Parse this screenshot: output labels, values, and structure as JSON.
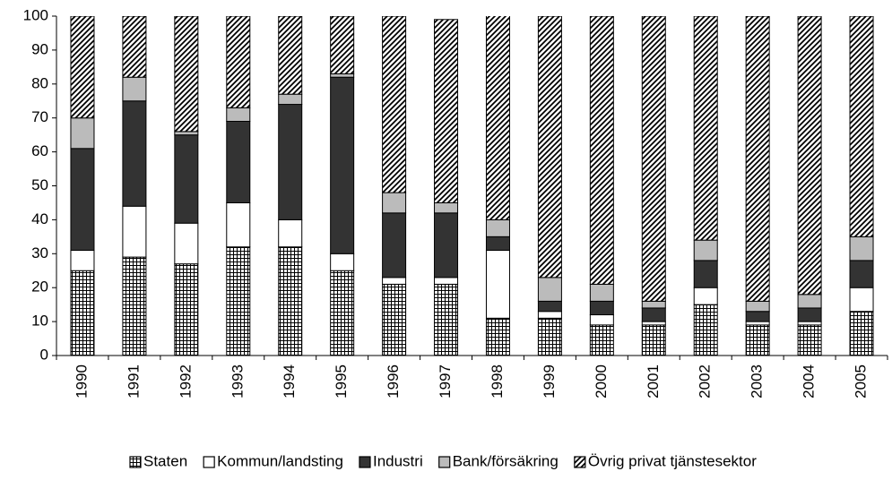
{
  "chart_data": {
    "type": "stacked_bar",
    "categories": [
      "1990",
      "1991",
      "1992",
      "1993",
      "1994",
      "1995",
      "1996",
      "1997",
      "1998",
      "1999",
      "2000",
      "2001",
      "2002",
      "2003",
      "2004",
      "2005"
    ],
    "series": [
      {
        "name": "Staten",
        "color": "#ffffff",
        "pattern": "grid",
        "values": [
          25,
          29,
          27,
          32,
          32,
          25,
          21,
          21,
          11,
          11,
          9,
          9,
          15,
          9,
          9,
          13
        ]
      },
      {
        "name": "Kommun/landsting",
        "color": "#ffffff",
        "values": [
          6,
          15,
          12,
          13,
          8,
          5,
          2,
          2,
          20,
          2,
          3,
          1,
          5,
          1,
          1,
          7
        ]
      },
      {
        "name": "Industri",
        "color": "#333333",
        "values": [
          30,
          31,
          26,
          24,
          34,
          52,
          19,
          19,
          4,
          3,
          4,
          4,
          8,
          3,
          4,
          8
        ]
      },
      {
        "name": "Bank/försäkring",
        "color": "#bbbbbb",
        "values": [
          9,
          7,
          1,
          4,
          3,
          1,
          6,
          3,
          5,
          7,
          5,
          2,
          6,
          3,
          4,
          7
        ]
      },
      {
        "name": "Övrig privat tjänstesektor",
        "color": "#ffffff",
        "pattern": "diagonal",
        "values": [
          30,
          18,
          34,
          27,
          23,
          17,
          52,
          54,
          62,
          77,
          79,
          84,
          66,
          84,
          82,
          65
        ]
      }
    ],
    "ylim": [
      0,
      100
    ],
    "yticks": [
      0,
      10,
      20,
      30,
      40,
      50,
      60,
      70,
      80,
      90,
      100
    ],
    "legend": "bottom"
  }
}
